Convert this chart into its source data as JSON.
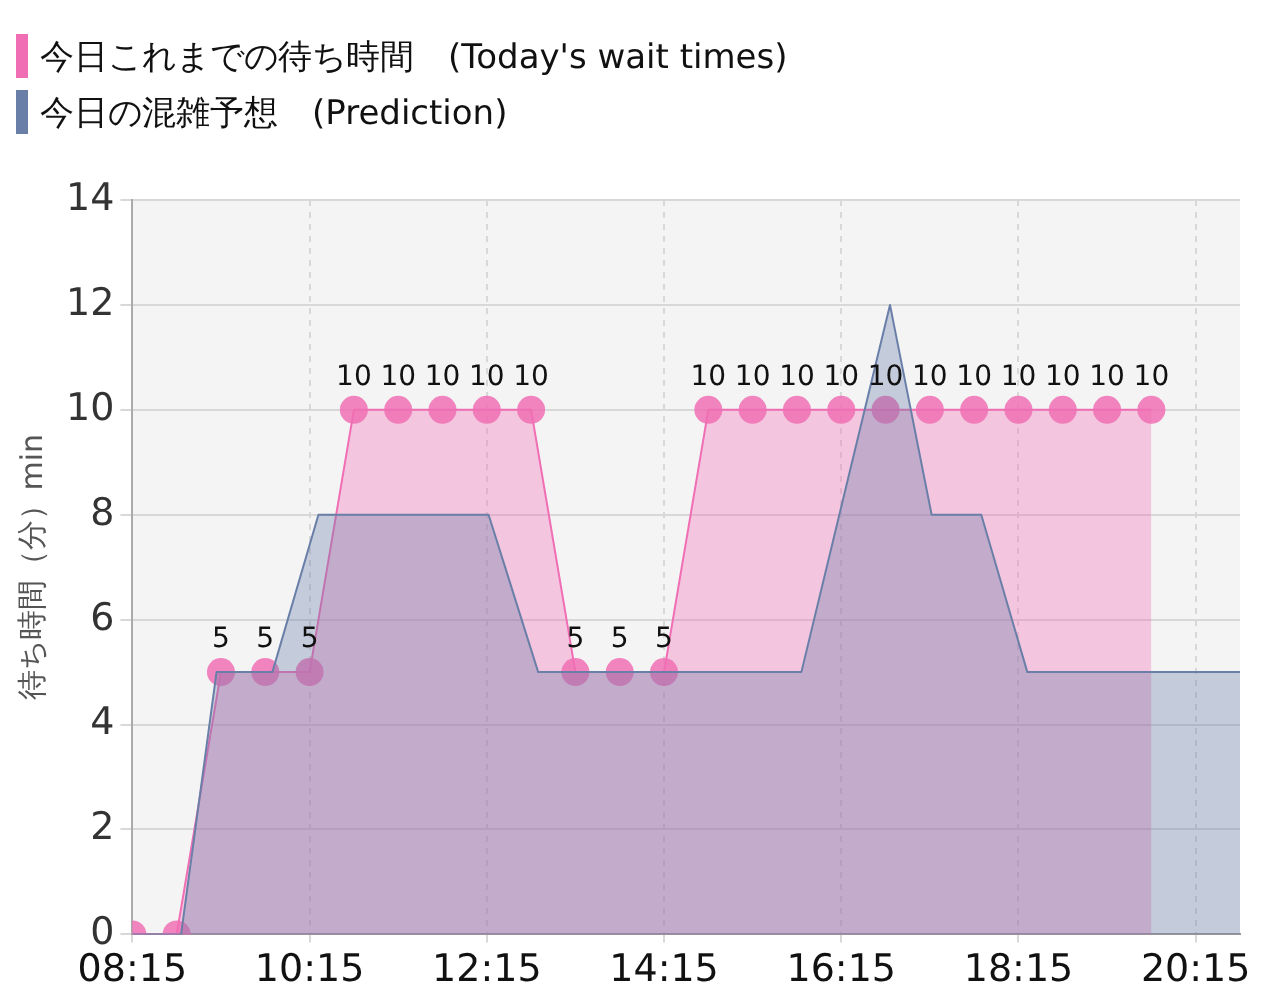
{
  "chart_data": {
    "type": "area",
    "ylabel": "待ち時間（分）min",
    "xlim": [
      8.25,
      20.75
    ],
    "xticks": [
      {
        "value": 8.25,
        "label": "08:15"
      },
      {
        "value": 10.25,
        "label": "10:15"
      },
      {
        "value": 12.25,
        "label": "12:15"
      },
      {
        "value": 14.25,
        "label": "14:15"
      },
      {
        "value": 16.25,
        "label": "16:15"
      },
      {
        "value": 18.25,
        "label": "18:15"
      },
      {
        "value": 20.25,
        "label": "20:15"
      }
    ],
    "ylim": [
      0,
      14
    ],
    "yticks": [
      0,
      2,
      4,
      6,
      8,
      10,
      12,
      14
    ],
    "grid": true,
    "legend": "top left",
    "series": [
      {
        "name": "今日これまでの待ち時間　(Today's wait times)",
        "color": "#f06eb4",
        "marker": "circle",
        "x": [
          8.25,
          8.75,
          9.25,
          9.75,
          10.25,
          10.75,
          11.25,
          11.75,
          12.25,
          12.75,
          13.25,
          13.75,
          14.25,
          14.75,
          15.25,
          15.75,
          16.25,
          16.75,
          17.25,
          17.75,
          18.25,
          18.75,
          19.25,
          19.75
        ],
        "values": [
          0,
          0,
          5,
          5,
          5,
          10,
          10,
          10,
          10,
          10,
          5,
          5,
          5,
          10,
          10,
          10,
          10,
          10,
          10,
          10,
          10,
          10,
          10,
          10
        ],
        "value_labels": [
          null,
          null,
          "5",
          "5",
          "5",
          "10",
          "10",
          "10",
          "10",
          "10",
          "5",
          "5",
          "5",
          "10",
          "10",
          "10",
          "10",
          "10",
          "10",
          "10",
          "10",
          "10",
          "10",
          "10"
        ]
      },
      {
        "name": "今日の混雑予想　(Prediction)",
        "color": "#6a7fa8",
        "marker": "none",
        "x": [
          8.25,
          8.8,
          9.2,
          9.83,
          10.35,
          12.27,
          12.83,
          15.8,
          16.8,
          17.27,
          17.83,
          18.35,
          20.75
        ],
        "values": [
          0,
          0,
          5,
          5,
          8,
          8,
          5,
          5,
          12,
          8,
          8,
          5,
          5
        ]
      }
    ]
  }
}
